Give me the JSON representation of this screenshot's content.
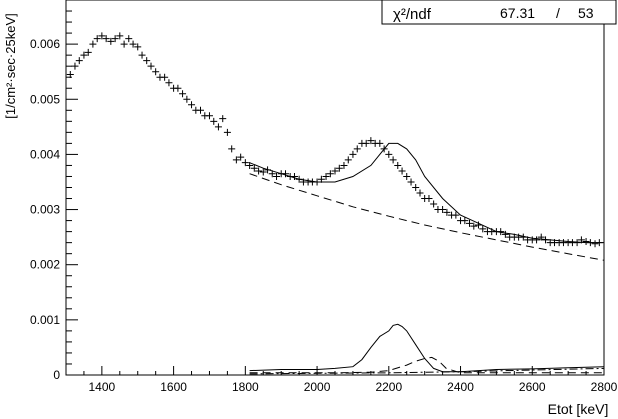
{
  "chart_data": {
    "type": "scatter",
    "title": "",
    "xlabel": "Etot [keV]",
    "ylabel": "[1/cm²·sec·25keV]",
    "xlim": [
      1300,
      2800
    ],
    "ylim": [
      0,
      0.0068
    ],
    "x_ticks": [
      1400,
      1600,
      1800,
      2000,
      2200,
      2400,
      2600,
      2800
    ],
    "y_ticks": [
      0,
      0.001,
      0.002,
      0.003,
      0.004,
      0.005,
      0.006
    ],
    "y_tick_labels": [
      "0",
      "0.001",
      "0.002",
      "0.003",
      "0.004",
      "0.005",
      "0.006"
    ],
    "stats_box": {
      "label": "χ²/ndf",
      "chi2": "67.31",
      "separator": "/",
      "ndf": "53"
    },
    "series": [
      {
        "style": "cross-markers",
        "x": [
          1312,
          1325,
          1337,
          1350,
          1362,
          1375,
          1387,
          1400,
          1412,
          1425,
          1437,
          1450,
          1462,
          1475,
          1487,
          1500,
          1512,
          1525,
          1537,
          1550,
          1562,
          1575,
          1587,
          1600,
          1612,
          1625,
          1637,
          1650,
          1662,
          1675,
          1687,
          1700,
          1712,
          1725,
          1737,
          1750,
          1762,
          1775,
          1787,
          1800,
          1812,
          1825,
          1837,
          1850,
          1862,
          1875,
          1887,
          1900,
          1912,
          1925,
          1937,
          1950,
          1962,
          1975,
          1987,
          2000,
          2012,
          2025,
          2037,
          2050,
          2062,
          2075,
          2087,
          2100,
          2112,
          2125,
          2137,
          2150,
          2162,
          2175,
          2187,
          2200,
          2212,
          2225,
          2237,
          2250,
          2262,
          2275,
          2287,
          2300,
          2312,
          2325,
          2337,
          2350,
          2362,
          2375,
          2387,
          2400,
          2412,
          2425,
          2437,
          2450,
          2462,
          2475,
          2487,
          2500,
          2512,
          2525,
          2537,
          2550,
          2562,
          2575,
          2587,
          2600,
          2612,
          2625,
          2637,
          2650,
          2662,
          2675,
          2687,
          2700,
          2712,
          2725,
          2737,
          2750,
          2762,
          2775,
          2787
        ],
        "y": [
          0.00545,
          0.0056,
          0.0057,
          0.0058,
          0.00585,
          0.006,
          0.0061,
          0.00615,
          0.0061,
          0.00605,
          0.0061,
          0.00615,
          0.006,
          0.0061,
          0.006,
          0.00595,
          0.0058,
          0.0057,
          0.0056,
          0.0055,
          0.0054,
          0.0054,
          0.0053,
          0.0052,
          0.0052,
          0.0051,
          0.005,
          0.0049,
          0.0048,
          0.0048,
          0.0047,
          0.0047,
          0.0046,
          0.0045,
          0.00465,
          0.0044,
          0.0041,
          0.0039,
          0.00395,
          0.00385,
          0.0038,
          0.00375,
          0.0037,
          0.00368,
          0.00372,
          0.00365,
          0.0036,
          0.00365,
          0.00365,
          0.0036,
          0.0036,
          0.00355,
          0.0035,
          0.0035,
          0.0035,
          0.0035,
          0.00355,
          0.0036,
          0.00365,
          0.0037,
          0.00375,
          0.0038,
          0.0039,
          0.004,
          0.0041,
          0.0042,
          0.0042,
          0.00425,
          0.0042,
          0.0042,
          0.0041,
          0.004,
          0.0039,
          0.0038,
          0.0037,
          0.0036,
          0.0035,
          0.0034,
          0.0033,
          0.0032,
          0.0032,
          0.0031,
          0.003,
          0.003,
          0.00295,
          0.0029,
          0.0029,
          0.0028,
          0.0028,
          0.00275,
          0.0027,
          0.00272,
          0.00265,
          0.0026,
          0.0026,
          0.0026,
          0.0026,
          0.00255,
          0.0025,
          0.0025,
          0.0025,
          0.0025,
          0.00245,
          0.00245,
          0.00245,
          0.0025,
          0.00245,
          0.0024,
          0.0024,
          0.0024,
          0.0024,
          0.0024,
          0.0024,
          0.0024,
          0.00245,
          0.00242,
          0.0024,
          0.00238,
          0.0024
        ]
      },
      {
        "style": "solid",
        "x": [
          1812,
          1850,
          1900,
          1950,
          2000,
          2050,
          2100,
          2150,
          2175,
          2200,
          2225,
          2250,
          2275,
          2300,
          2350,
          2400,
          2450,
          2500,
          2550,
          2600,
          2650,
          2700,
          2750,
          2800
        ],
        "y": [
          0.00385,
          0.00375,
          0.00365,
          0.00355,
          0.0035,
          0.0035,
          0.0036,
          0.0038,
          0.004,
          0.0042,
          0.0042,
          0.0041,
          0.0039,
          0.0036,
          0.0032,
          0.0029,
          0.00275,
          0.0026,
          0.00255,
          0.00248,
          0.00245,
          0.00242,
          0.0024,
          0.0024
        ]
      },
      {
        "style": "dashed",
        "x": [
          1812,
          1900,
          2000,
          2100,
          2200,
          2300,
          2400,
          2500,
          2600,
          2700,
          2800
        ],
        "y": [
          0.00365,
          0.00345,
          0.00325,
          0.00305,
          0.00288,
          0.00272,
          0.00258,
          0.00245,
          0.00232,
          0.0022,
          0.00208
        ]
      },
      {
        "style": "solid",
        "x": [
          1812,
          1900,
          2000,
          2050,
          2100,
          2125,
          2150,
          2175,
          2200,
          2212,
          2225,
          2237,
          2250,
          2275,
          2300,
          2325,
          2350,
          2400,
          2450,
          2500,
          2600,
          2700,
          2750,
          2800
        ],
        "y": [
          8e-05,
          0.0001,
          0.0001,
          0.00012,
          0.00015,
          0.00028,
          0.0005,
          0.0007,
          0.0008,
          0.0009,
          0.00092,
          0.00088,
          0.0008,
          0.00055,
          0.0003,
          0.00012,
          6e-05,
          6e-05,
          8e-05,
          0.0001,
          0.00011,
          0.00013,
          0.00014,
          0.00015
        ]
      },
      {
        "style": "dashed",
        "x": [
          1812,
          2050,
          2150,
          2200,
          2250,
          2275,
          2300,
          2320,
          2340,
          2360,
          2400,
          2500,
          2800
        ],
        "y": [
          4e-05,
          4e-05,
          5e-05,
          8e-05,
          0.00018,
          0.00025,
          0.0003,
          0.00032,
          0.00025,
          0.00012,
          4e-05,
          4e-05,
          4e-05
        ]
      },
      {
        "style": "dashdot",
        "x": [
          1812,
          2000,
          2200,
          2400,
          2600,
          2800
        ],
        "y": [
          2e-05,
          3e-05,
          4e-05,
          6e-05,
          9e-05,
          0.00012
        ]
      }
    ]
  }
}
